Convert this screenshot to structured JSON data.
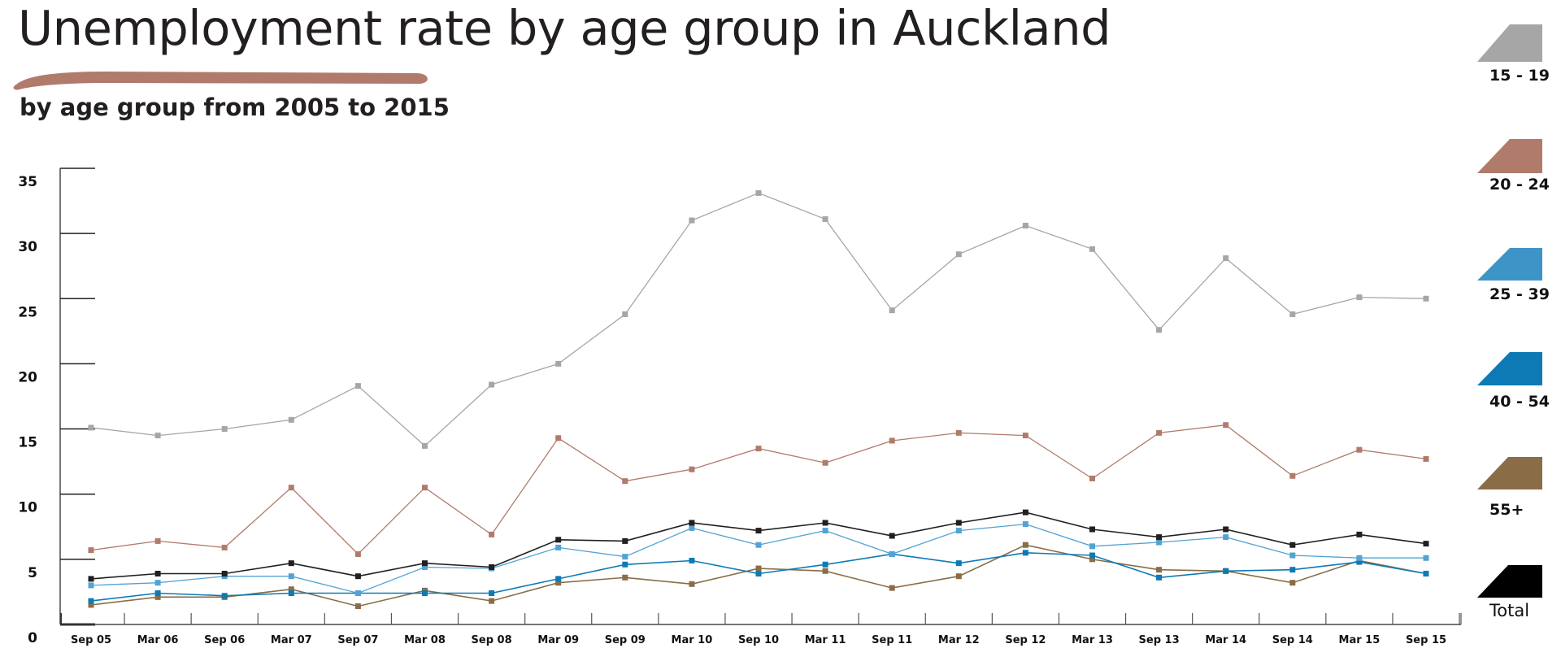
{
  "header": {
    "title": "Unemployment rate by age group in Auckland",
    "subtitle": "by age group from 2005 to 2015",
    "accent_color": "#b07b6b"
  },
  "legend": [
    {
      "label": "15 - 19",
      "color": "#a6a6a6"
    },
    {
      "label": "20 - 24",
      "color": "#b07b6b"
    },
    {
      "label": "25 - 39",
      "color": "#3d94c6"
    },
    {
      "label": "40 - 54",
      "color": "#0d7ab5"
    },
    {
      "label": "55+",
      "color": "#8a6d47"
    },
    {
      "label": "Total",
      "color": "#000000"
    }
  ],
  "chart_data": {
    "type": "line",
    "title": "Unemployment rate by age group in Auckland",
    "subtitle": "by age group from 2005 to 2015",
    "xlabel": "",
    "ylabel": "",
    "ylim": [
      0,
      35
    ],
    "yticks": [
      0,
      5,
      10,
      15,
      20,
      25,
      30,
      35
    ],
    "grid": false,
    "legend_position": "right",
    "categories": [
      "Sep 05",
      "Mar 06",
      "Sep 06",
      "Mar 07",
      "Sep 07",
      "Mar 08",
      "Sep 08",
      "Mar 09",
      "Sep 09",
      "Mar 10",
      "Sep 10",
      "Mar 11",
      "Sep 11",
      "Mar 12",
      "Sep 12",
      "Mar 13",
      "Sep 13",
      "Mar 14",
      "Sep 14",
      "Mar 15",
      "Sep 15"
    ],
    "series": [
      {
        "name": "15 - 19",
        "color": "#a6a6a6",
        "values": [
          15.1,
          14.5,
          15.0,
          15.7,
          18.3,
          13.7,
          18.4,
          20.0,
          23.8,
          31.0,
          33.1,
          31.1,
          24.1,
          28.4,
          30.6,
          28.8,
          22.6,
          28.1,
          23.8,
          25.1,
          25.0
        ]
      },
      {
        "name": "20 - 24",
        "color": "#b07b6b",
        "values": [
          5.7,
          6.4,
          5.9,
          10.5,
          5.4,
          10.5,
          6.9,
          14.3,
          11.0,
          11.9,
          13.5,
          12.4,
          14.1,
          14.7,
          14.5,
          11.2,
          14.7,
          15.3,
          11.4,
          13.4,
          12.7
        ]
      },
      {
        "name": "55+",
        "color": "#8a6d47",
        "values": [
          1.5,
          2.1,
          2.1,
          2.7,
          1.4,
          2.6,
          1.8,
          3.2,
          3.6,
          3.1,
          4.3,
          4.1,
          2.8,
          3.7,
          6.1,
          5.0,
          4.2,
          4.1,
          3.2,
          4.9,
          3.9
        ]
      },
      {
        "name": "40 - 54",
        "color": "#0d7ab5",
        "values": [
          1.8,
          2.4,
          2.2,
          2.4,
          2.4,
          2.4,
          2.4,
          3.5,
          4.6,
          4.9,
          3.9,
          4.6,
          5.4,
          4.7,
          5.5,
          5.3,
          3.6,
          4.1,
          4.2,
          4.8,
          3.9
        ]
      },
      {
        "name": "25 - 39",
        "color": "#52a3d3",
        "values": [
          3.0,
          3.2,
          3.7,
          3.7,
          2.4,
          4.4,
          4.3,
          5.9,
          5.2,
          7.4,
          6.1,
          7.2,
          5.4,
          7.2,
          7.7,
          6.0,
          6.3,
          6.7,
          5.3,
          5.1,
          5.1
        ]
      },
      {
        "name": "Total",
        "color": "#231f20",
        "values": [
          3.5,
          3.9,
          3.9,
          4.7,
          3.7,
          4.7,
          4.4,
          6.5,
          6.4,
          7.8,
          7.2,
          7.8,
          6.8,
          7.8,
          8.6,
          7.3,
          6.7,
          7.3,
          6.1,
          6.9,
          6.2
        ]
      }
    ]
  }
}
